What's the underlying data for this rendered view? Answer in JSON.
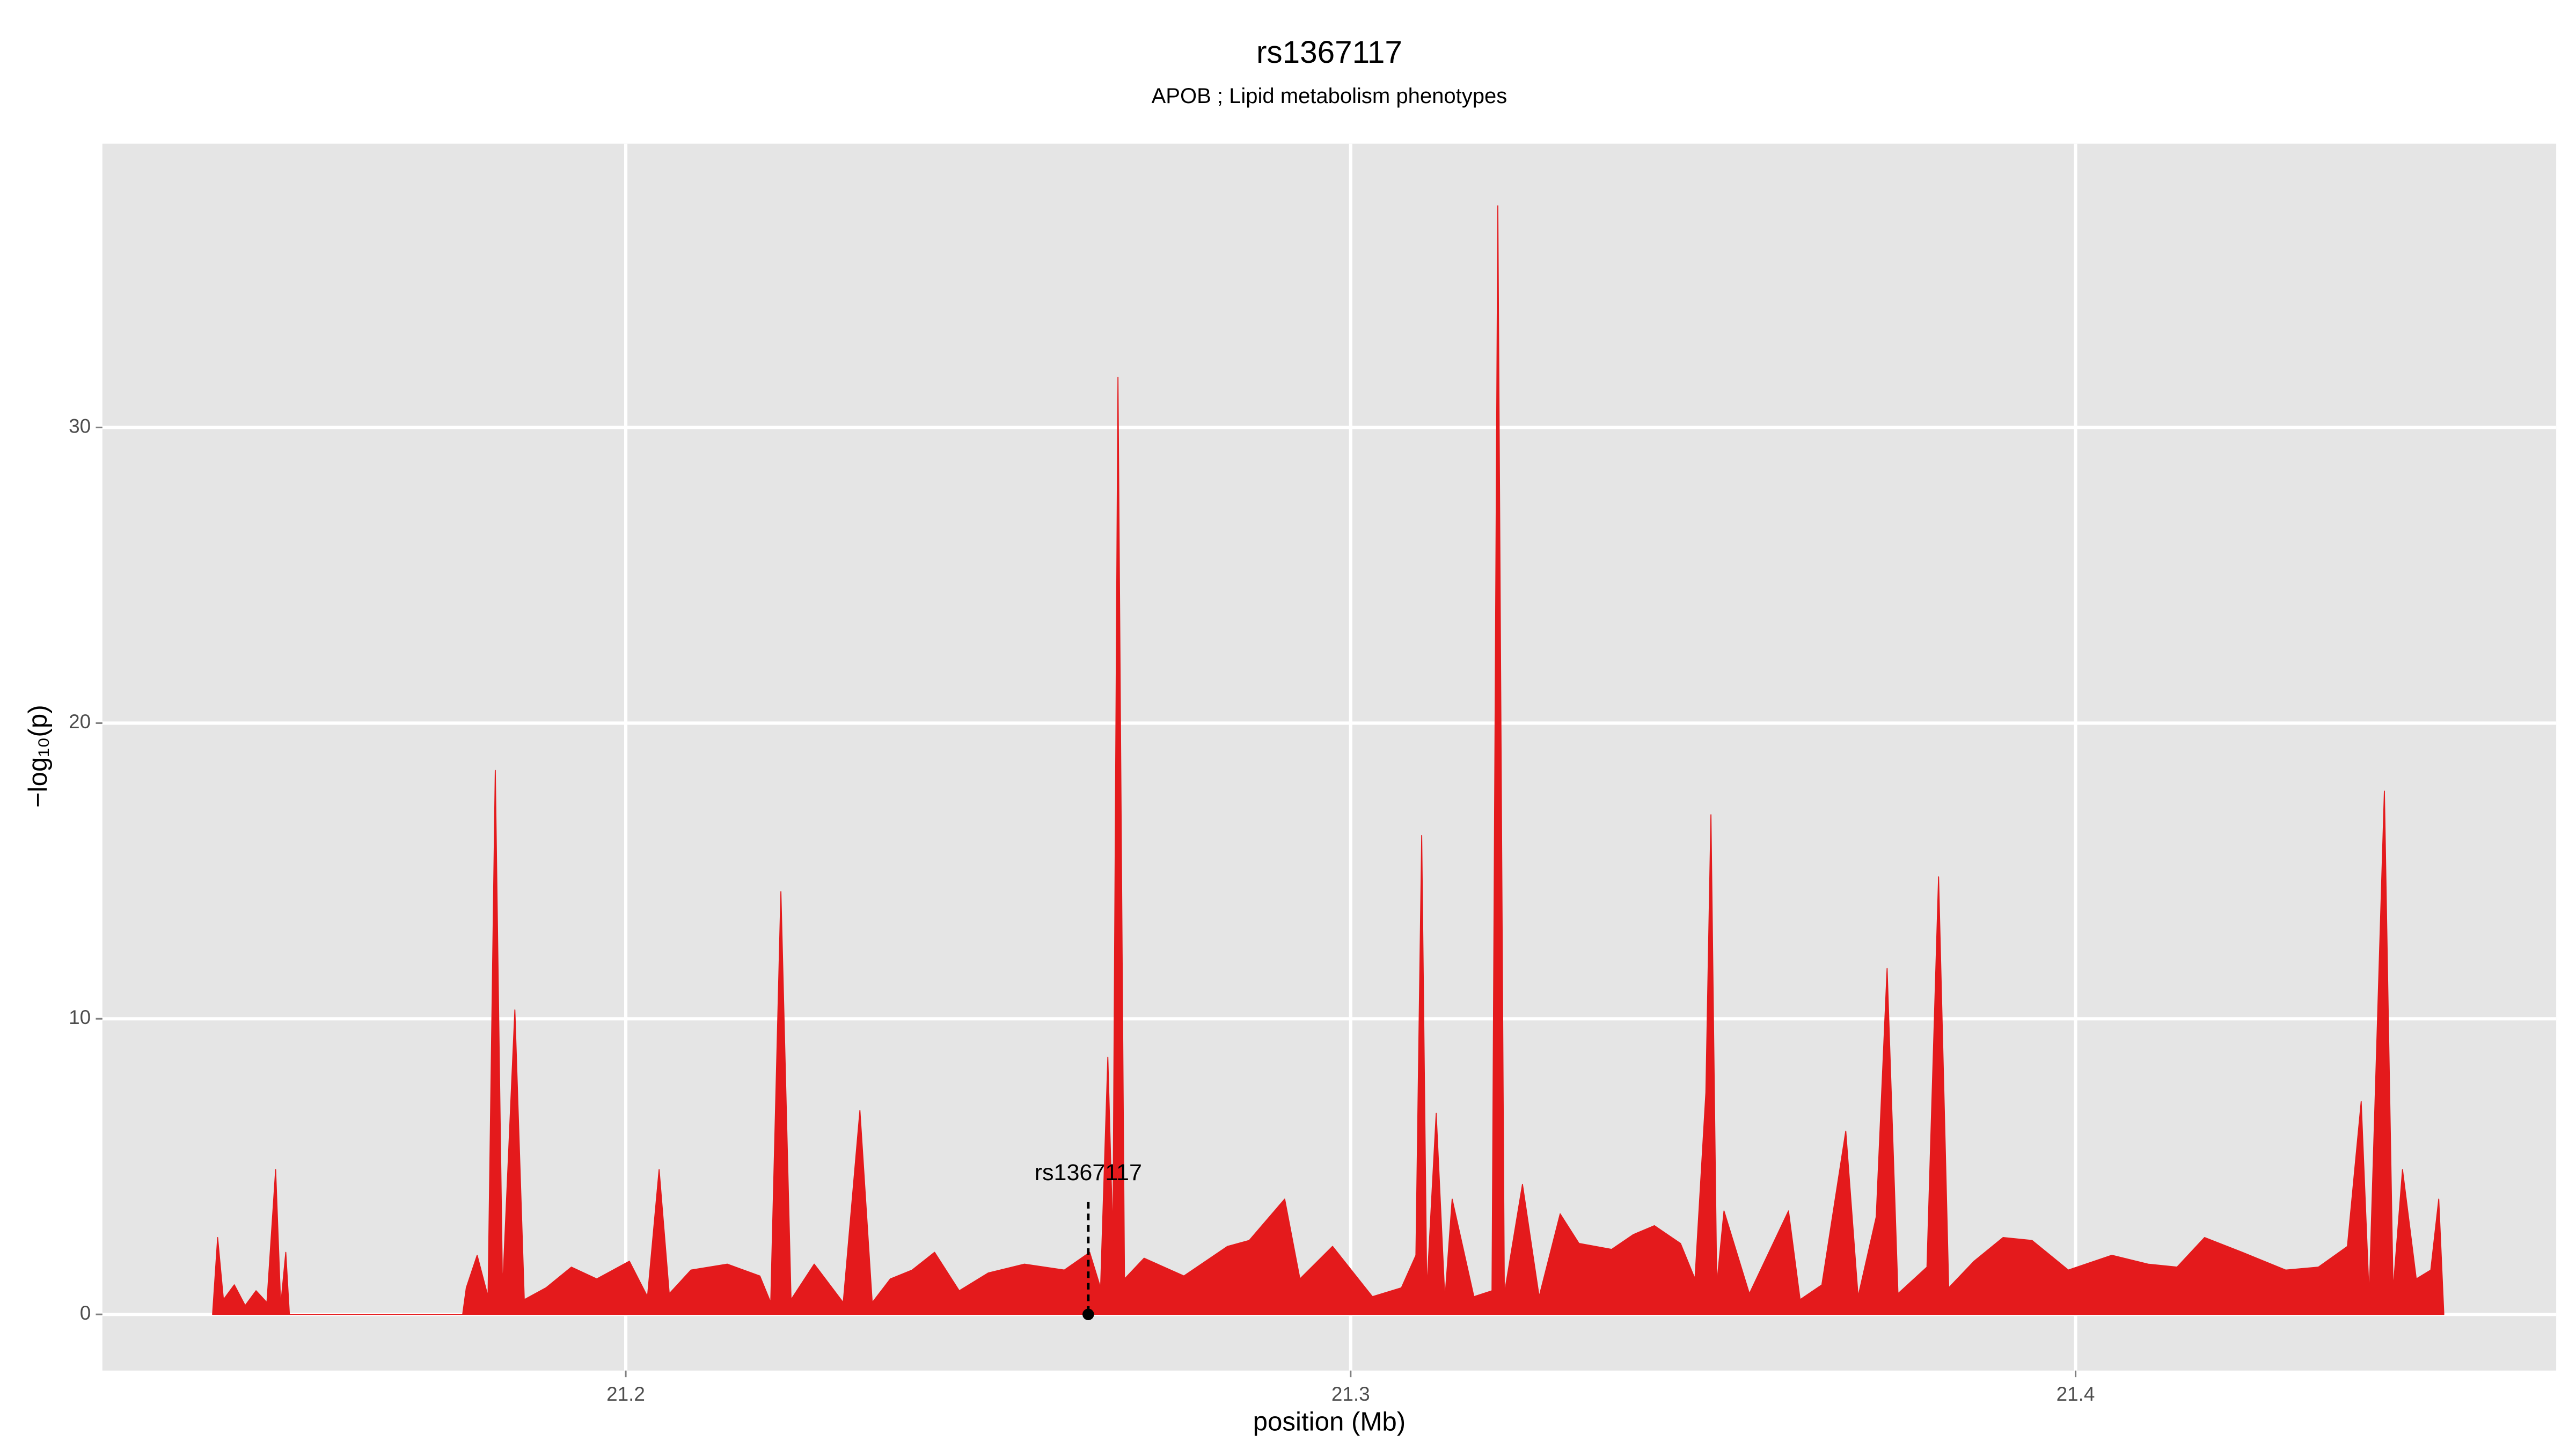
{
  "chart_data": {
    "type": "area",
    "title": "rs1367117",
    "subtitle": "APOB ; Lipid metabolism phenotypes",
    "x_label": "position (Mb)",
    "y_label": "−log₁₀(p)",
    "xlim": [
      21.1278,
      21.4663
    ],
    "ylim": [
      -1.9,
      39.6
    ],
    "xticks": [
      21.2,
      21.3,
      21.4
    ],
    "yticks": [
      0,
      10,
      20,
      30
    ],
    "grid": true,
    "color": "#e41a1c",
    "x": [
      21.143,
      21.1437,
      21.1445,
      21.146,
      21.1475,
      21.149,
      21.1505,
      21.1517,
      21.1524,
      21.1531,
      21.1536,
      21.1775,
      21.178,
      21.1795,
      21.181,
      21.182,
      21.183,
      21.1847,
      21.186,
      21.189,
      21.1925,
      21.196,
      21.2005,
      21.203,
      21.2046,
      21.206,
      21.209,
      21.214,
      21.2185,
      21.22,
      21.2214,
      21.2228,
      21.226,
      21.23,
      21.2323,
      21.234,
      21.2365,
      21.2395,
      21.2426,
      21.246,
      21.25,
      21.255,
      21.2605,
      21.264,
      21.2655,
      21.2665,
      21.2672,
      21.2679,
      21.2688,
      21.2715,
      21.277,
      21.283,
      21.286,
      21.2909,
      21.293,
      21.2975,
      21.303,
      21.307,
      21.309,
      21.3098,
      21.3105,
      21.3118,
      21.313,
      21.314,
      21.317,
      21.3195,
      21.3203,
      21.3212,
      21.3237,
      21.326,
      21.3289,
      21.3315,
      21.336,
      21.339,
      21.3419,
      21.3455,
      21.3475,
      21.349,
      21.3497,
      21.3505,
      21.3515,
      21.355,
      21.3604,
      21.362,
      21.365,
      21.3683,
      21.37,
      21.3725,
      21.374,
      21.3755,
      21.3795,
      21.3811,
      21.3825,
      21.386,
      21.39,
      21.394,
      21.399,
      21.405,
      21.41,
      21.414,
      21.4178,
      21.423,
      21.429,
      21.4335,
      21.4375,
      21.4394,
      21.4405,
      21.4426,
      21.4438,
      21.4451,
      21.447,
      21.449,
      21.4501,
      21.4508
    ],
    "values": [
      0,
      2.6,
      0.5,
      1.0,
      0.3,
      0.8,
      0.4,
      4.9,
      0.3,
      2.1,
      0,
      0,
      0.9,
      2.0,
      0.6,
      18.4,
      0.8,
      10.3,
      0.5,
      0.9,
      1.6,
      1.2,
      1.8,
      0.6,
      4.9,
      0.7,
      1.5,
      1.7,
      1.3,
      0.4,
      14.3,
      0.5,
      1.7,
      0.4,
      6.9,
      0.4,
      1.2,
      1.5,
      2.1,
      0.8,
      1.4,
      1.7,
      1.5,
      2.1,
      0.9,
      8.7,
      2.5,
      31.7,
      1.2,
      1.9,
      1.3,
      2.3,
      2.5,
      3.9,
      1.2,
      2.3,
      0.6,
      0.9,
      2.0,
      16.2,
      0.8,
      6.8,
      0.5,
      3.9,
      0.6,
      0.8,
      37.5,
      0.7,
      4.4,
      0.6,
      3.4,
      2.4,
      2.2,
      2.7,
      3.0,
      2.4,
      1.2,
      7.5,
      16.9,
      1.0,
      3.5,
      0.7,
      3.5,
      0.5,
      1.0,
      6.2,
      0.6,
      3.3,
      11.7,
      0.7,
      1.6,
      14.8,
      0.9,
      1.8,
      2.6,
      2.5,
      1.5,
      2.0,
      1.7,
      1.6,
      2.6,
      2.1,
      1.5,
      1.6,
      2.3,
      7.2,
      0.6,
      17.7,
      0.8,
      4.9,
      1.2,
      1.5,
      3.9,
      0
    ],
    "annotation": {
      "text": "rs1367117",
      "x": 21.2638,
      "y": 0,
      "line_top": 3.8
    }
  }
}
